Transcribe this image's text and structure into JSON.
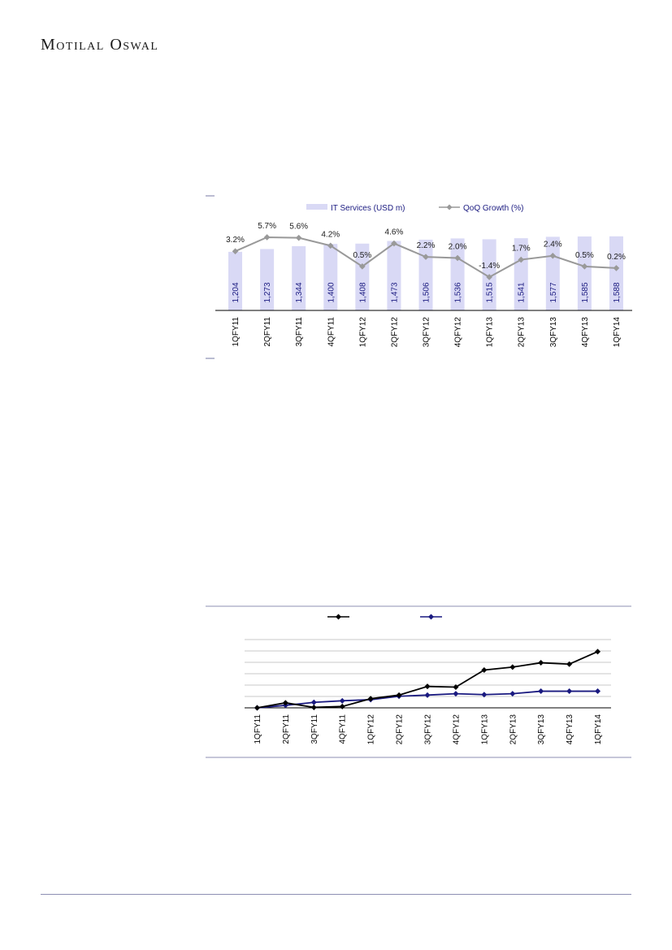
{
  "header": {
    "brand": "Motilal Oswal"
  },
  "colors": {
    "bar": "#d9d9f5",
    "growth_line": "#999999",
    "series_black": "#000000",
    "series_navy": "#1a1a80",
    "rule": "#8d8fb3"
  },
  "chart_data": [
    {
      "type": "bar",
      "categories": [
        "1QFY11",
        "2QFY11",
        "3QFY11",
        "4QFY11",
        "1QFY12",
        "2QFY12",
        "3QFY12",
        "4QFY12",
        "1QFY13",
        "2QFY13",
        "3QFY13",
        "4QFY13",
        "1QFY14"
      ],
      "series": [
        {
          "name": "IT Services (USD m)",
          "type": "bar",
          "values": [
            1204,
            1273,
            1344,
            1400,
            1408,
            1473,
            1506,
            1536,
            1515,
            1541,
            1577,
            1585,
            1588
          ],
          "value_labels": [
            "1,204",
            "1,273",
            "1,344",
            "1,400",
            "1,408",
            "1,473",
            "1,506",
            "1,536",
            "1,515",
            "1,541",
            "1,577",
            "1,585",
            "1,588"
          ]
        },
        {
          "name": "QoQ Growth (%)",
          "type": "line",
          "values": [
            3.2,
            5.7,
            5.6,
            4.2,
            0.5,
            4.6,
            2.2,
            2.0,
            -1.4,
            1.7,
            2.4,
            0.5,
            0.2
          ],
          "value_labels": [
            "3.2%",
            "5.7%",
            "5.6%",
            "4.2%",
            "0.5%",
            "4.6%",
            "2.2%",
            "2.0%",
            "-1.4%",
            "1.7%",
            "2.4%",
            "0.5%",
            "0.2%"
          ]
        }
      ],
      "legend": "top",
      "grid": false
    },
    {
      "type": "line",
      "categories": [
        "1QFY11",
        "2QFY11",
        "3QFY11",
        "4QFY11",
        "1QFY12",
        "2QFY12",
        "3QFY12",
        "4QFY12",
        "1QFY13",
        "2QFY13",
        "3QFY13",
        "4QFY13",
        "1QFY14"
      ],
      "series": [
        {
          "values": [
            100,
            102.2,
            100.2,
            100.6,
            104,
            105.6,
            109.4,
            109.1,
            116.6,
            117.9,
            119.8,
            119.2,
            124.7
          ]
        },
        {
          "values": [
            100,
            101.1,
            102.4,
            103.1,
            103.6,
            105.1,
            105.6,
            106.2,
            105.8,
            106.2,
            107.3,
            107.3,
            107.3
          ]
        }
      ],
      "ylim": [
        100,
        130
      ],
      "grid": true,
      "legend": "top"
    }
  ]
}
